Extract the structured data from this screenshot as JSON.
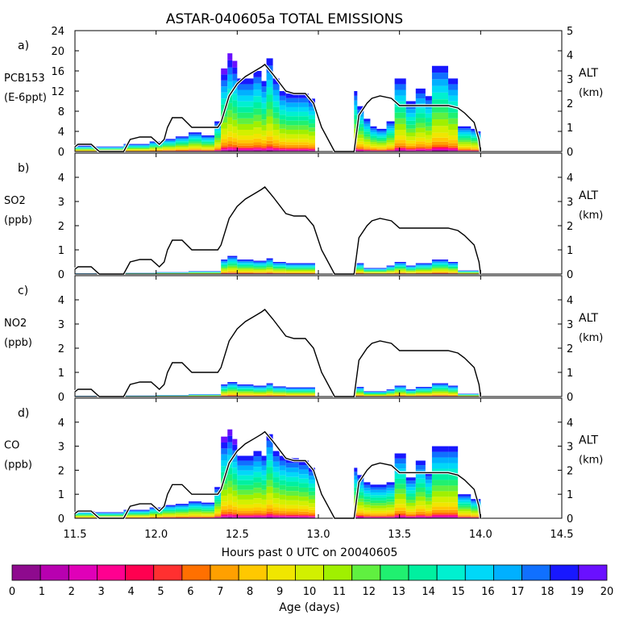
{
  "chart_data": {
    "type": "area",
    "title": "ASTAR-040605a TOTAL EMISSIONS",
    "xlabel": "Hours past 0 UTC on 20040605",
    "xlim": [
      11.5,
      14.5
    ],
    "x_ticks": [
      "11.5",
      "12.0",
      "12.5",
      "13.0",
      "13.5",
      "14.0",
      "14.5"
    ],
    "x_tick_values": [
      11.5,
      12.0,
      12.5,
      13.0,
      13.5,
      14.0,
      14.5
    ],
    "right_axis": {
      "label": "ALT",
      "units": "(km)",
      "ylim": [
        0,
        5
      ],
      "ticks": [
        "0",
        "1",
        "2",
        "3",
        "4",
        "5"
      ]
    },
    "altitude_km": {
      "x": [
        11.5,
        11.52,
        11.6,
        11.65,
        11.72,
        11.8,
        11.84,
        11.9,
        11.97,
        12.02,
        12.05,
        12.07,
        12.1,
        12.16,
        12.22,
        12.3,
        12.38,
        12.4,
        12.45,
        12.5,
        12.55,
        12.6,
        12.65,
        12.67,
        12.72,
        12.8,
        12.85,
        12.92,
        12.97,
        13.02,
        13.1,
        13.2,
        13.22,
        13.25,
        13.3,
        13.33,
        13.38,
        13.45,
        13.5,
        13.55,
        13.7,
        13.8,
        13.86,
        13.9,
        13.96,
        13.99,
        14.0
      ],
      "y": [
        0.2,
        0.3,
        0.3,
        0.0,
        0.0,
        0.0,
        0.5,
        0.6,
        0.6,
        0.3,
        0.5,
        1.0,
        1.4,
        1.4,
        1.0,
        1.0,
        1.0,
        1.2,
        2.3,
        2.8,
        3.1,
        3.3,
        3.5,
        3.6,
        3.2,
        2.5,
        2.4,
        2.4,
        2.0,
        1.0,
        0.0,
        0.0,
        0.0,
        1.5,
        2.0,
        2.2,
        2.3,
        2.2,
        1.9,
        1.9,
        1.9,
        1.9,
        1.8,
        1.6,
        1.2,
        0.5,
        0.0
      ]
    },
    "panels": [
      {
        "label": "a)",
        "species": "PCB153",
        "units": "(E-6ppt)",
        "ylim": [
          0,
          24
        ],
        "y_ticks": [
          "0",
          "4",
          "8",
          "12",
          "16",
          "20",
          "24"
        ],
        "bars": [
          {
            "x0": 11.5,
            "x1": 11.62,
            "total": 1.2,
            "top": 20
          },
          {
            "x0": 11.62,
            "x1": 11.8,
            "total": 1.0,
            "top": 19
          },
          {
            "x0": 11.8,
            "x1": 11.96,
            "total": 1.5,
            "top": 19
          },
          {
            "x0": 11.96,
            "x1": 12.04,
            "total": 2.0,
            "top": 19
          },
          {
            "x0": 12.04,
            "x1": 12.12,
            "total": 2.5,
            "top": 19
          },
          {
            "x0": 12.12,
            "x1": 12.2,
            "total": 3.0,
            "top": 19
          },
          {
            "x0": 12.2,
            "x1": 12.28,
            "total": 3.8,
            "top": 19
          },
          {
            "x0": 12.28,
            "x1": 12.36,
            "total": 3.2,
            "top": 19
          },
          {
            "x0": 12.36,
            "x1": 12.4,
            "total": 6.0,
            "top": 19
          },
          {
            "x0": 12.4,
            "x1": 12.44,
            "total": 16.5,
            "top": 20
          },
          {
            "x0": 12.44,
            "x1": 12.47,
            "total": 19.5,
            "top": 20
          },
          {
            "x0": 12.47,
            "x1": 12.5,
            "total": 18.0,
            "top": 20
          },
          {
            "x0": 12.5,
            "x1": 12.6,
            "total": 14.5,
            "top": 19
          },
          {
            "x0": 12.6,
            "x1": 12.65,
            "total": 16.0,
            "top": 19
          },
          {
            "x0": 12.65,
            "x1": 12.68,
            "total": 14.0,
            "top": 19
          },
          {
            "x0": 12.68,
            "x1": 12.72,
            "total": 18.5,
            "top": 19
          },
          {
            "x0": 12.72,
            "x1": 12.76,
            "total": 14.5,
            "top": 19
          },
          {
            "x0": 12.76,
            "x1": 12.8,
            "total": 12.0,
            "top": 19
          },
          {
            "x0": 12.8,
            "x1": 12.88,
            "total": 11.5,
            "top": 19
          },
          {
            "x0": 12.88,
            "x1": 12.94,
            "total": 11.5,
            "top": 19
          },
          {
            "x0": 12.94,
            "x1": 12.98,
            "total": 10.5,
            "top": 19
          },
          {
            "x0": 13.22,
            "x1": 13.24,
            "total": 12.0,
            "top": 19
          },
          {
            "x0": 13.24,
            "x1": 13.28,
            "total": 9.0,
            "top": 19
          },
          {
            "x0": 13.28,
            "x1": 13.32,
            "total": 6.5,
            "top": 19
          },
          {
            "x0": 13.32,
            "x1": 13.36,
            "total": 5.0,
            "top": 19
          },
          {
            "x0": 13.36,
            "x1": 13.42,
            "total": 4.5,
            "top": 19
          },
          {
            "x0": 13.42,
            "x1": 13.47,
            "total": 6.0,
            "top": 19
          },
          {
            "x0": 13.47,
            "x1": 13.54,
            "total": 14.5,
            "top": 19
          },
          {
            "x0": 13.54,
            "x1": 13.6,
            "total": 10.0,
            "top": 19
          },
          {
            "x0": 13.6,
            "x1": 13.66,
            "total": 12.5,
            "top": 19
          },
          {
            "x0": 13.66,
            "x1": 13.7,
            "total": 11.0,
            "top": 19
          },
          {
            "x0": 13.7,
            "x1": 13.8,
            "total": 17.0,
            "top": 19
          },
          {
            "x0": 13.8,
            "x1": 13.86,
            "total": 14.5,
            "top": 19
          },
          {
            "x0": 13.86,
            "x1": 13.94,
            "total": 5.0,
            "top": 19
          },
          {
            "x0": 13.94,
            "x1": 13.98,
            "total": 4.5,
            "top": 19
          },
          {
            "x0": 13.98,
            "x1": 14.0,
            "total": 4.0,
            "top": 19
          }
        ]
      },
      {
        "label": "b)",
        "species": "SO2",
        "units": "(ppb)",
        "ylim": [
          0,
          5
        ],
        "y_ticks": [
          "0",
          "1",
          "2",
          "3",
          "4"
        ],
        "bars": [
          {
            "x0": 11.5,
            "x1": 11.8,
            "total": 0.03,
            "top": 19
          },
          {
            "x0": 11.8,
            "x1": 12.0,
            "total": 0.05,
            "top": 19
          },
          {
            "x0": 12.0,
            "x1": 12.2,
            "total": 0.08,
            "top": 19
          },
          {
            "x0": 12.2,
            "x1": 12.4,
            "total": 0.12,
            "top": 19
          },
          {
            "x0": 12.4,
            "x1": 12.44,
            "total": 0.6,
            "top": 19
          },
          {
            "x0": 12.44,
            "x1": 12.5,
            "total": 0.75,
            "top": 19
          },
          {
            "x0": 12.5,
            "x1": 12.6,
            "total": 0.6,
            "top": 19
          },
          {
            "x0": 12.6,
            "x1": 12.68,
            "total": 0.55,
            "top": 19
          },
          {
            "x0": 12.68,
            "x1": 12.72,
            "total": 0.65,
            "top": 19
          },
          {
            "x0": 12.72,
            "x1": 12.8,
            "total": 0.5,
            "top": 19
          },
          {
            "x0": 12.8,
            "x1": 12.98,
            "total": 0.45,
            "top": 19
          },
          {
            "x0": 13.22,
            "x1": 13.28,
            "total": 0.45,
            "top": 19
          },
          {
            "x0": 13.28,
            "x1": 13.42,
            "total": 0.25,
            "top": 19
          },
          {
            "x0": 13.42,
            "x1": 13.47,
            "total": 0.35,
            "top": 19
          },
          {
            "x0": 13.47,
            "x1": 13.54,
            "total": 0.5,
            "top": 19
          },
          {
            "x0": 13.54,
            "x1": 13.6,
            "total": 0.35,
            "top": 19
          },
          {
            "x0": 13.6,
            "x1": 13.7,
            "total": 0.45,
            "top": 19
          },
          {
            "x0": 13.7,
            "x1": 13.8,
            "total": 0.6,
            "top": 19
          },
          {
            "x0": 13.8,
            "x1": 13.86,
            "total": 0.5,
            "top": 19
          },
          {
            "x0": 13.86,
            "x1": 14.0,
            "total": 0.15,
            "top": 19
          }
        ]
      },
      {
        "label": "c)",
        "species": "NO2",
        "units": "(ppb)",
        "ylim": [
          0,
          5
        ],
        "y_ticks": [
          "0",
          "1",
          "2",
          "3",
          "4"
        ],
        "bars": [
          {
            "x0": 11.5,
            "x1": 11.8,
            "total": 0.03,
            "top": 19
          },
          {
            "x0": 11.8,
            "x1": 12.0,
            "total": 0.04,
            "top": 19
          },
          {
            "x0": 12.0,
            "x1": 12.2,
            "total": 0.06,
            "top": 19
          },
          {
            "x0": 12.2,
            "x1": 12.4,
            "total": 0.1,
            "top": 19
          },
          {
            "x0": 12.4,
            "x1": 12.44,
            "total": 0.5,
            "top": 19
          },
          {
            "x0": 12.44,
            "x1": 12.5,
            "total": 0.6,
            "top": 19
          },
          {
            "x0": 12.5,
            "x1": 12.6,
            "total": 0.5,
            "top": 19
          },
          {
            "x0": 12.6,
            "x1": 12.68,
            "total": 0.45,
            "top": 19
          },
          {
            "x0": 12.68,
            "x1": 12.72,
            "total": 0.55,
            "top": 19
          },
          {
            "x0": 12.72,
            "x1": 12.8,
            "total": 0.42,
            "top": 19
          },
          {
            "x0": 12.8,
            "x1": 12.98,
            "total": 0.38,
            "top": 19
          },
          {
            "x0": 13.22,
            "x1": 13.28,
            "total": 0.4,
            "top": 19
          },
          {
            "x0": 13.28,
            "x1": 13.42,
            "total": 0.22,
            "top": 19
          },
          {
            "x0": 13.42,
            "x1": 13.47,
            "total": 0.3,
            "top": 19
          },
          {
            "x0": 13.47,
            "x1": 13.54,
            "total": 0.45,
            "top": 19
          },
          {
            "x0": 13.54,
            "x1": 13.6,
            "total": 0.3,
            "top": 19
          },
          {
            "x0": 13.6,
            "x1": 13.7,
            "total": 0.4,
            "top": 19
          },
          {
            "x0": 13.7,
            "x1": 13.8,
            "total": 0.55,
            "top": 19
          },
          {
            "x0": 13.8,
            "x1": 13.86,
            "total": 0.45,
            "top": 19
          },
          {
            "x0": 13.86,
            "x1": 14.0,
            "total": 0.12,
            "top": 19
          }
        ]
      },
      {
        "label": "d)",
        "species": "CO",
        "units": "(ppb)",
        "ylim": [
          0,
          5
        ],
        "y_ticks": [
          "0",
          "1",
          "2",
          "3",
          "4"
        ],
        "bars": [
          {
            "x0": 11.5,
            "x1": 11.62,
            "total": 0.3,
            "top": 20
          },
          {
            "x0": 11.62,
            "x1": 11.8,
            "total": 0.25,
            "top": 19
          },
          {
            "x0": 11.8,
            "x1": 11.96,
            "total": 0.35,
            "top": 19
          },
          {
            "x0": 11.96,
            "x1": 12.04,
            "total": 0.45,
            "top": 19
          },
          {
            "x0": 12.04,
            "x1": 12.12,
            "total": 0.55,
            "top": 19
          },
          {
            "x0": 12.12,
            "x1": 12.2,
            "total": 0.6,
            "top": 19
          },
          {
            "x0": 12.2,
            "x1": 12.28,
            "total": 0.7,
            "top": 19
          },
          {
            "x0": 12.28,
            "x1": 12.36,
            "total": 0.65,
            "top": 19
          },
          {
            "x0": 12.36,
            "x1": 12.4,
            "total": 1.3,
            "top": 19
          },
          {
            "x0": 12.4,
            "x1": 12.44,
            "total": 3.4,
            "top": 20
          },
          {
            "x0": 12.44,
            "x1": 12.47,
            "total": 3.7,
            "top": 20
          },
          {
            "x0": 12.47,
            "x1": 12.5,
            "total": 3.3,
            "top": 20
          },
          {
            "x0": 12.5,
            "x1": 12.6,
            "total": 2.6,
            "top": 19
          },
          {
            "x0": 12.6,
            "x1": 12.65,
            "total": 2.8,
            "top": 19
          },
          {
            "x0": 12.65,
            "x1": 12.68,
            "total": 2.6,
            "top": 19
          },
          {
            "x0": 12.68,
            "x1": 12.72,
            "total": 3.5,
            "top": 19
          },
          {
            "x0": 12.72,
            "x1": 12.76,
            "total": 2.8,
            "top": 19
          },
          {
            "x0": 12.76,
            "x1": 12.8,
            "total": 2.6,
            "top": 19
          },
          {
            "x0": 12.8,
            "x1": 12.88,
            "total": 2.5,
            "top": 19
          },
          {
            "x0": 12.88,
            "x1": 12.94,
            "total": 2.4,
            "top": 19
          },
          {
            "x0": 12.94,
            "x1": 12.98,
            "total": 2.1,
            "top": 19
          },
          {
            "x0": 13.22,
            "x1": 13.24,
            "total": 2.1,
            "top": 19
          },
          {
            "x0": 13.24,
            "x1": 13.28,
            "total": 1.8,
            "top": 19
          },
          {
            "x0": 13.28,
            "x1": 13.32,
            "total": 1.5,
            "top": 19
          },
          {
            "x0": 13.32,
            "x1": 13.36,
            "total": 1.4,
            "top": 19
          },
          {
            "x0": 13.36,
            "x1": 13.42,
            "total": 1.4,
            "top": 19
          },
          {
            "x0": 13.42,
            "x1": 13.47,
            "total": 1.5,
            "top": 19
          },
          {
            "x0": 13.47,
            "x1": 13.54,
            "total": 2.7,
            "top": 19
          },
          {
            "x0": 13.54,
            "x1": 13.6,
            "total": 1.7,
            "top": 19
          },
          {
            "x0": 13.6,
            "x1": 13.66,
            "total": 2.4,
            "top": 19
          },
          {
            "x0": 13.66,
            "x1": 13.7,
            "total": 1.9,
            "top": 19
          },
          {
            "x0": 13.7,
            "x1": 13.8,
            "total": 3.0,
            "top": 19
          },
          {
            "x0": 13.8,
            "x1": 13.86,
            "total": 3.0,
            "top": 19
          },
          {
            "x0": 13.86,
            "x1": 13.94,
            "total": 1.0,
            "top": 19
          },
          {
            "x0": 13.94,
            "x1": 13.98,
            "total": 0.8,
            "top": 19
          },
          {
            "x0": 13.98,
            "x1": 14.0,
            "total": 0.8,
            "top": 19
          }
        ]
      }
    ],
    "colorbar": {
      "label": "Age (days)",
      "ticks": [
        "0",
        "1",
        "2",
        "3",
        "4",
        "5",
        "6",
        "7",
        "8",
        "9",
        "10",
        "11",
        "12",
        "13",
        "14",
        "15",
        "16",
        "17",
        "18",
        "19",
        "20"
      ],
      "colors": [
        "#8e0a8e",
        "#b800b0",
        "#e000b8",
        "#ff0090",
        "#ff0050",
        "#ff3030",
        "#ff7000",
        "#ffa000",
        "#ffc800",
        "#f0e600",
        "#d2f000",
        "#a0f000",
        "#60f040",
        "#20f070",
        "#00f0a0",
        "#00f0d0",
        "#00d8f8",
        "#00b0ff",
        "#1070ff",
        "#1818ff",
        "#6a10ff"
      ]
    }
  }
}
